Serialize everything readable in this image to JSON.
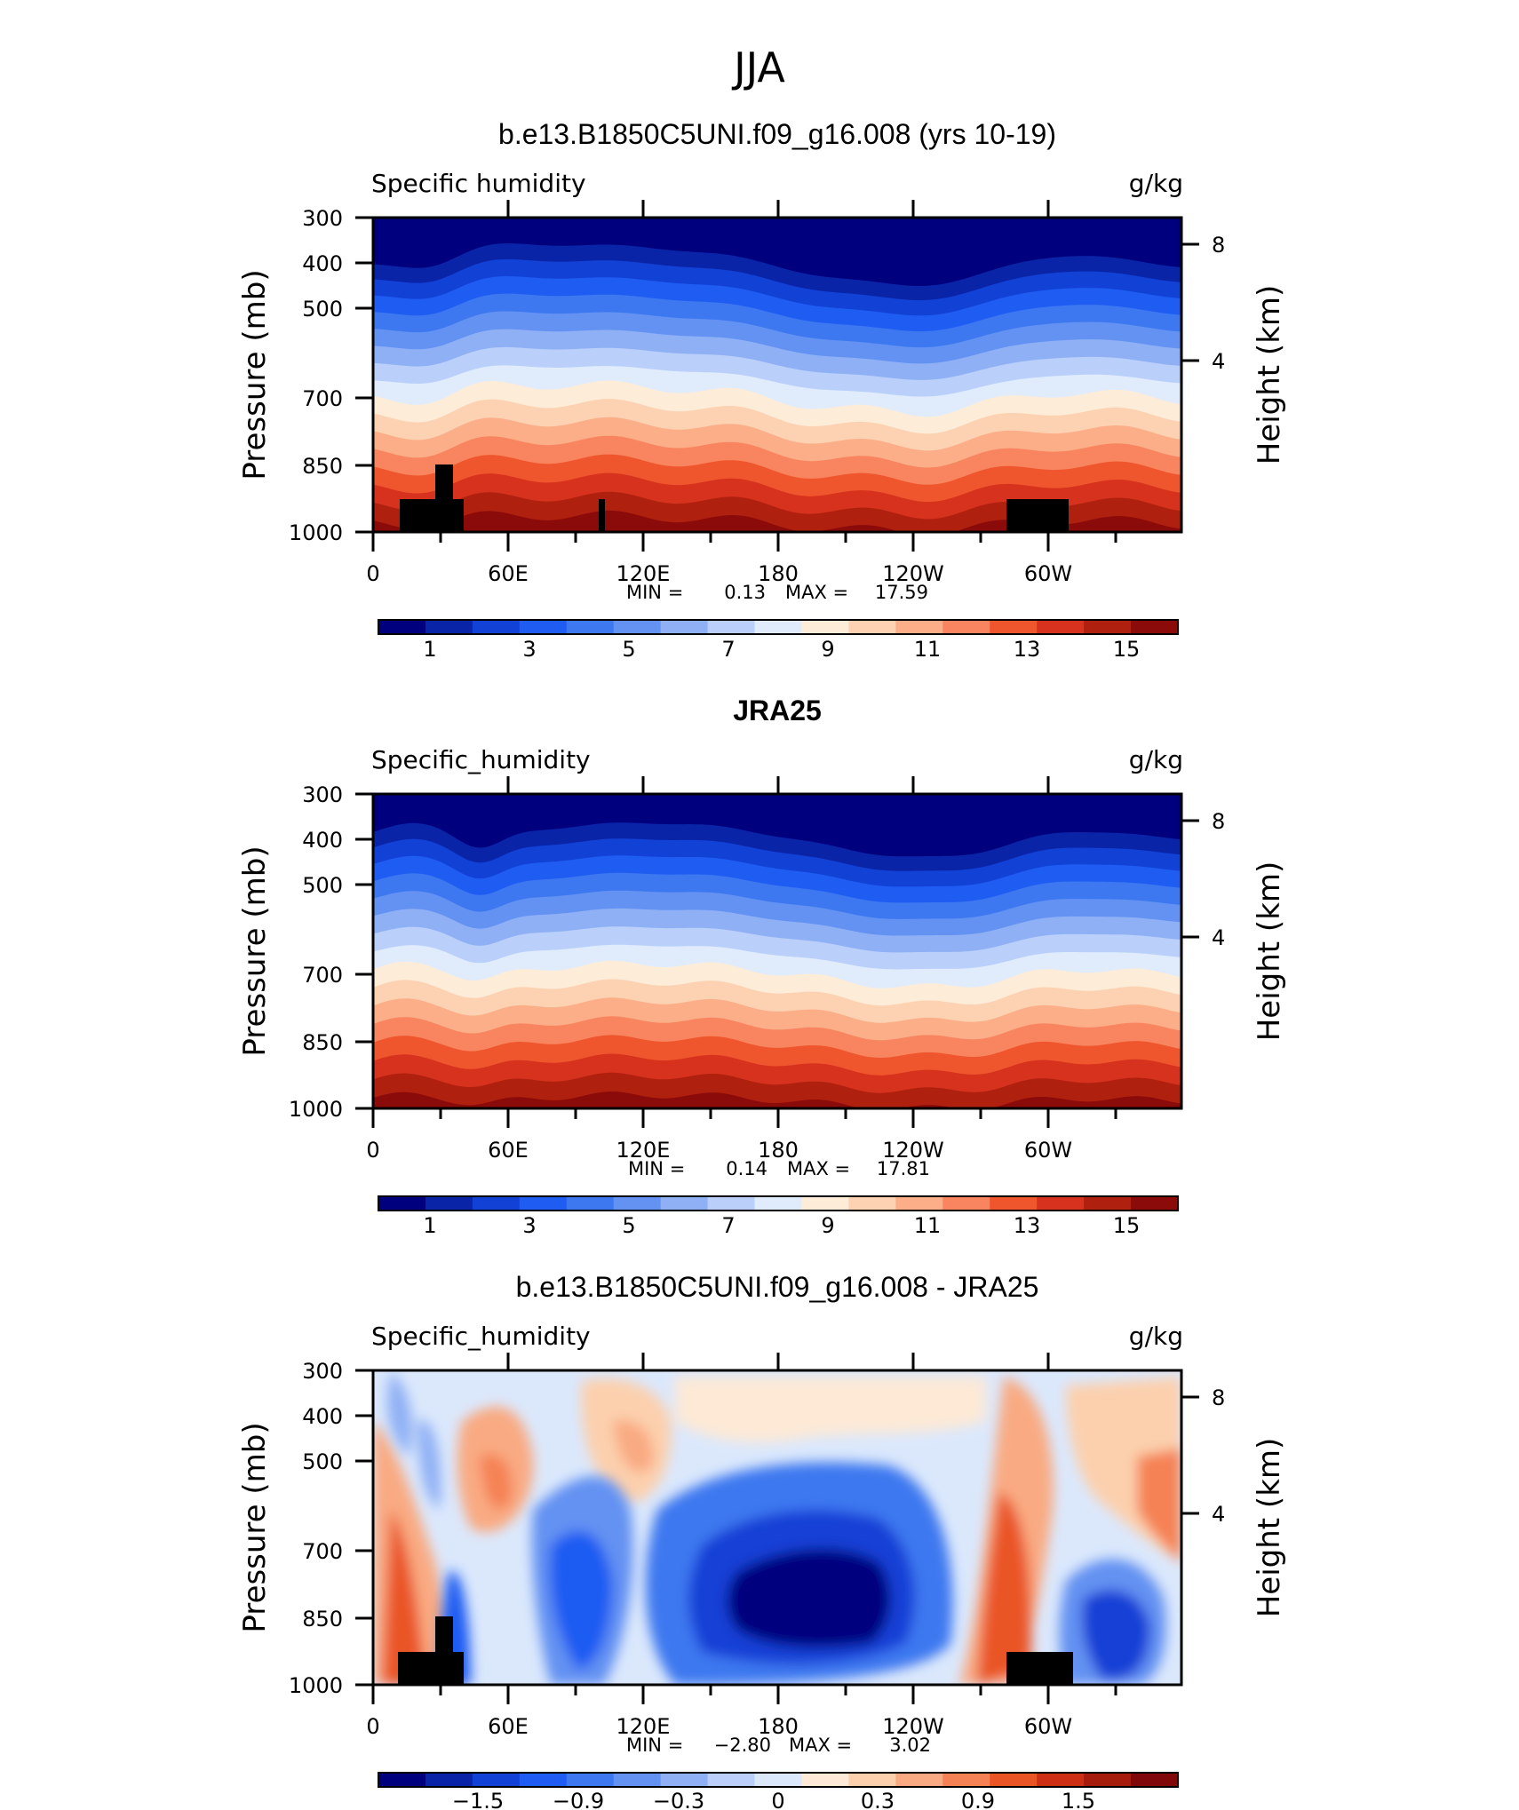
{
  "figure": {
    "title": "JJA",
    "colors": {
      "cbar_full": [
        "#00007f",
        "#0a24a8",
        "#1241d6",
        "#1f5cf2",
        "#3d78f0",
        "#6392f2",
        "#8fb0f5",
        "#bad0fa",
        "#e0ecfc",
        "#fdecd8",
        "#fcd2b2",
        "#fbae88",
        "#f8855f",
        "#f0562d",
        "#d6321d",
        "#b0200f",
        "#8b0a0a"
      ],
      "cbar_diff": [
        "#00007f",
        "#0a24a8",
        "#1241d6",
        "#1f5cf2",
        "#3d78f0",
        "#6392f2",
        "#8fb0f5",
        "#bad0fa",
        "#dbe8fc",
        "#fde9d6",
        "#fcd0ad",
        "#f9aa82",
        "#f58255",
        "#ea5526",
        "#cc2f14",
        "#a51c0c",
        "#800808"
      ],
      "land_mask": "#000000"
    }
  },
  "chart_data": [
    {
      "type": "heatmap",
      "title": "b.e13.B1850C5UNI.f09_g16.008 (yrs 10-19)",
      "variable_label": "Specific humidity",
      "units_label": "g/kg",
      "ylabel": "Pressure (mb)",
      "ylabel_right": "Height (km)",
      "x_ticks": [
        "0",
        "60E",
        "120E",
        "180",
        "120W",
        "60W"
      ],
      "y_ticks": [
        "300",
        "400",
        "500",
        "700",
        "850",
        "1000"
      ],
      "y_ticks_right": [
        "8",
        "4"
      ],
      "min_label": "MIN =",
      "min_value": "0.13",
      "max_label": "MAX =",
      "max_value": "17.59",
      "colorbar_labels": [
        "1",
        "3",
        "5",
        "7",
        "9",
        "11",
        "13",
        "15"
      ],
      "data_range": [
        0.13,
        17.59
      ],
      "ylim": [
        1000,
        300
      ],
      "xlim": [
        0,
        360
      ]
    },
    {
      "type": "heatmap",
      "title": "JRA25",
      "variable_label": "Specific_humidity",
      "units_label": "g/kg",
      "ylabel": "Pressure (mb)",
      "ylabel_right": "Height (km)",
      "x_ticks": [
        "0",
        "60E",
        "120E",
        "180",
        "120W",
        "60W"
      ],
      "y_ticks": [
        "300",
        "400",
        "500",
        "700",
        "850",
        "1000"
      ],
      "y_ticks_right": [
        "8",
        "4"
      ],
      "min_label": "MIN =",
      "min_value": "0.14",
      "max_label": "MAX =",
      "max_value": "17.81",
      "colorbar_labels": [
        "1",
        "3",
        "5",
        "7",
        "9",
        "11",
        "13",
        "15"
      ],
      "data_range": [
        0.14,
        17.81
      ],
      "ylim": [
        1000,
        300
      ],
      "xlim": [
        0,
        360
      ]
    },
    {
      "type": "heatmap",
      "title": "b.e13.B1850C5UNI.f09_g16.008 - JRA25",
      "variable_label": "Specific_humidity",
      "units_label": "g/kg",
      "ylabel": "Pressure (mb)",
      "ylabel_right": "Height (km)",
      "x_ticks": [
        "0",
        "60E",
        "120E",
        "180",
        "120W",
        "60W"
      ],
      "y_ticks": [
        "300",
        "400",
        "500",
        "700",
        "850",
        "1000"
      ],
      "y_ticks_right": [
        "8",
        "4"
      ],
      "min_label": "MIN =",
      "min_value": "−2.80",
      "max_label": "MAX =",
      "max_value": "3.02",
      "colorbar_labels": [
        "−1.5",
        "−0.9",
        "−0.3",
        "0",
        "0.3",
        "0.9",
        "1.5"
      ],
      "data_range": [
        -2.8,
        3.02
      ],
      "ylim": [
        1000,
        300
      ],
      "xlim": [
        0,
        360
      ]
    }
  ]
}
